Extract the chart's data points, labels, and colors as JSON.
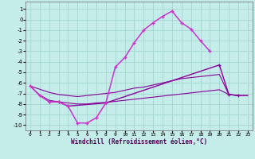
{
  "xlabel": "Windchill (Refroidissement éolien,°C)",
  "bg_color": "#c4ece8",
  "grid_color": "#a0d0cc",
  "col_bright": "#cc33cc",
  "col_dark": "#880099",
  "xlim_min": -0.5,
  "xlim_max": 23.5,
  "ylim_min": -10.5,
  "ylim_max": 1.7,
  "yticks": [
    1,
    0,
    -1,
    -2,
    -3,
    -4,
    -5,
    -6,
    -7,
    -8,
    -9,
    -10
  ],
  "xticks": [
    0,
    1,
    2,
    3,
    4,
    5,
    6,
    7,
    8,
    9,
    10,
    11,
    12,
    13,
    14,
    15,
    16,
    17,
    18,
    19,
    20,
    21,
    22,
    23
  ],
  "c_wavy_x": [
    0,
    1,
    2,
    3,
    4,
    5,
    6,
    7,
    8,
    9,
    10,
    11,
    12,
    13,
    14,
    15,
    16,
    17,
    18,
    19
  ],
  "c_wavy_y": [
    -6.3,
    -7.2,
    -7.8,
    -7.8,
    -8.2,
    -9.8,
    -9.8,
    -9.3,
    -7.9,
    -4.5,
    -3.6,
    -2.2,
    -1.0,
    -0.3,
    0.3,
    0.8,
    -0.3,
    -0.9,
    -2.0,
    -3.0
  ],
  "c_seg_x": [
    2,
    3,
    4,
    8,
    20,
    21,
    22
  ],
  "c_seg_y": [
    -7.8,
    -7.8,
    -8.2,
    -7.9,
    -4.3,
    -7.1,
    -7.2
  ],
  "c_upper_x": [
    0,
    1,
    2,
    3,
    4,
    5,
    6,
    7,
    8,
    9,
    10,
    11,
    12,
    13,
    14,
    15,
    16,
    17,
    18,
    19,
    20,
    21,
    22,
    23
  ],
  "c_upper_y": [
    -6.3,
    -6.6,
    -6.9,
    -7.1,
    -7.2,
    -7.3,
    -7.2,
    -7.1,
    -7.0,
    -6.9,
    -6.7,
    -6.5,
    -6.4,
    -6.2,
    -6.0,
    -5.8,
    -5.6,
    -5.5,
    -5.4,
    -5.3,
    -5.2,
    -7.1,
    -7.2,
    -7.2
  ],
  "c_lower_x": [
    0,
    1,
    2,
    3,
    4,
    5,
    6,
    7,
    8,
    9,
    10,
    11,
    12,
    13,
    14,
    15,
    16,
    17,
    18,
    19,
    20,
    21,
    22,
    23
  ],
  "c_lower_y": [
    -6.3,
    -7.15,
    -7.65,
    -7.8,
    -7.9,
    -8.0,
    -8.0,
    -7.9,
    -7.85,
    -7.75,
    -7.65,
    -7.55,
    -7.45,
    -7.35,
    -7.25,
    -7.15,
    -7.05,
    -6.95,
    -6.85,
    -6.75,
    -6.65,
    -7.1,
    -7.2,
    -7.2
  ]
}
